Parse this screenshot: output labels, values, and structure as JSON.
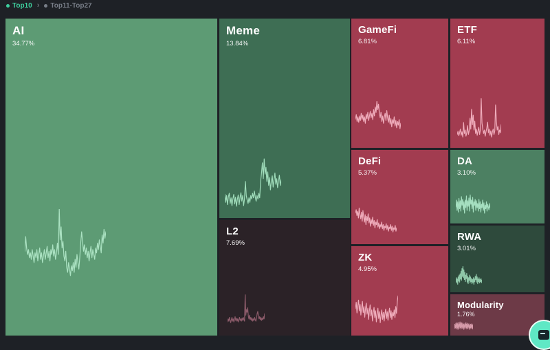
{
  "header": {
    "tabs": [
      {
        "label": "Top10",
        "active": true
      },
      {
        "label": "Top11-Top27",
        "active": false
      }
    ],
    "separator": "›",
    "active_color": "#3ecf9e",
    "inactive_color": "#787e88"
  },
  "chart_data": {
    "type": "treemap",
    "title": "Sector dominance treemap with price sparklines",
    "legend_position": "none",
    "sectors": [
      {
        "name": "AI",
        "share": "34.77%",
        "value": 34.77,
        "trend": "up",
        "color": "#5d9b74",
        "spark_color": "#abe2c2",
        "spark": [
          48,
          66,
          52,
          44,
          50,
          40,
          46,
          38,
          50,
          42,
          34,
          46,
          40,
          50,
          36,
          44,
          52,
          38,
          46,
          34,
          42,
          50,
          38,
          46,
          54,
          40,
          48,
          36,
          50,
          44,
          56,
          42,
          50,
          38,
          46,
          58,
          44,
          100,
          62,
          78,
          52,
          60,
          42,
          36,
          48,
          28,
          22,
          34,
          26,
          18,
          30,
          24,
          34,
          22,
          38,
          28,
          44,
          34,
          26,
          40,
          58,
          72,
          60,
          48,
          56,
          44,
          52,
          40,
          48,
          36,
          46,
          54,
          40,
          50,
          44,
          38,
          52,
          46,
          58,
          50,
          62,
          54,
          46,
          68,
          58,
          75,
          64,
          72
        ]
      },
      {
        "name": "Meme",
        "share": "13.84%",
        "value": 13.84,
        "trend": "up",
        "color": "#3e6e54",
        "spark_color": "#9fdcba",
        "spark": [
          32,
          18,
          30,
          14,
          28,
          34,
          16,
          26,
          12,
          24,
          32,
          15,
          27,
          11,
          23,
          31,
          14,
          26,
          35,
          20,
          30,
          12,
          24,
          55,
          30,
          22,
          16,
          26,
          18,
          30,
          24,
          34,
          26,
          38,
          28,
          20,
          30,
          24,
          34,
          26,
          55,
          70,
          88,
          60,
          95,
          68,
          80,
          55,
          72,
          48,
          62,
          40,
          55,
          65,
          45,
          58,
          70,
          50,
          60,
          44,
          56,
          66,
          48,
          58
        ]
      },
      {
        "name": "L2",
        "share": "7.69%",
        "value": 7.69,
        "trend": "down",
        "color": "#2b2227",
        "spark_color": "#8d5c6b",
        "spark": [
          22,
          30,
          24,
          34,
          26,
          20,
          28,
          34,
          24,
          30,
          22,
          28,
          36,
          26,
          32,
          24,
          30,
          22,
          28,
          34,
          26,
          30,
          24,
          32,
          26,
          34,
          28,
          24,
          95,
          40,
          55,
          48,
          60,
          38,
          30,
          40,
          28,
          34,
          26,
          32,
          24,
          30,
          26,
          34,
          28,
          24,
          32,
          44,
          50,
          38,
          30,
          36,
          28,
          34,
          26,
          32,
          28,
          36,
          30,
          44
        ]
      },
      {
        "name": "GameFi",
        "share": "6.81%",
        "value": 6.81,
        "trend": "down",
        "color": "#a23c50",
        "spark_color": "#efacbb",
        "spark": [
          45,
          55,
          40,
          50,
          38,
          52,
          42,
          58,
          44,
          54,
          40,
          50,
          36,
          56,
          46,
          60,
          42,
          52,
          62,
          48,
          58,
          44,
          66,
          52,
          72,
          60,
          84,
          66,
          78,
          58,
          48,
          60,
          40,
          52,
          36,
          50,
          58,
          42,
          64,
          48,
          38,
          54,
          34,
          46,
          28,
          44,
          36,
          50,
          30,
          42,
          26,
          40,
          32,
          44,
          24,
          36
        ]
      },
      {
        "name": "ETF",
        "share": "6.11%",
        "value": 6.11,
        "trend": "down",
        "color": "#a23c50",
        "spark_color": "#efacbb",
        "spark": [
          18,
          25,
          15,
          22,
          30,
          16,
          24,
          12,
          45,
          20,
          28,
          14,
          22,
          38,
          18,
          26,
          55,
          30,
          75,
          40,
          62,
          28,
          48,
          20,
          30,
          16,
          26,
          34,
          18,
          28,
          100,
          44,
          30,
          20,
          28,
          14,
          24,
          32,
          46,
          22,
          30,
          16,
          26,
          12,
          24,
          30,
          18,
          26,
          85,
          48,
          28,
          36,
          18,
          28,
          22,
          40
        ]
      },
      {
        "name": "DeFi",
        "share": "5.37%",
        "value": 5.37,
        "trend": "down",
        "color": "#a23c50",
        "spark_color": "#efacbb",
        "spark": [
          62,
          70,
          56,
          66,
          50,
          74,
          58,
          48,
          64,
          42,
          68,
          52,
          40,
          58,
          34,
          54,
          44,
          60,
          38,
          50,
          30,
          46,
          36,
          52,
          32,
          44,
          26,
          40,
          34,
          46,
          28,
          38,
          24,
          34,
          28,
          40,
          24,
          34,
          20,
          30,
          26,
          36,
          22,
          32,
          18,
          28,
          24,
          34,
          20,
          30,
          16,
          26,
          22,
          32,
          18,
          26
        ]
      },
      {
        "name": "ZK",
        "share": "4.95%",
        "value": 4.95,
        "trend": "down",
        "color": "#a23c50",
        "spark_color": "#efacbb",
        "spark": [
          55,
          70,
          45,
          62,
          75,
          50,
          65,
          40,
          58,
          72,
          46,
          60,
          35,
          55,
          68,
          42,
          56,
          30,
          50,
          64,
          38,
          52,
          26,
          46,
          58,
          34,
          50,
          24,
          44,
          56,
          32,
          48,
          22,
          40,
          52,
          30,
          46,
          26,
          42,
          54,
          32,
          48,
          28,
          44,
          56,
          34,
          50,
          30,
          46,
          38,
          52,
          34,
          60,
          44,
          72,
          85
        ]
      },
      {
        "name": "DA",
        "share": "3.10%",
        "value": 3.1,
        "trend": "up",
        "color": "#4c8062",
        "spark_color": "#a5dfc0",
        "spark": [
          40,
          60,
          30,
          55,
          25,
          65,
          35,
          58,
          28,
          70,
          45,
          62,
          32,
          55,
          22,
          60,
          38,
          72,
          30,
          58,
          42,
          66,
          28,
          75,
          48,
          60,
          35,
          68,
          25,
          55,
          45,
          62,
          30,
          58,
          38,
          50,
          28,
          62,
          35,
          55,
          25,
          48,
          38,
          60,
          30,
          52,
          22,
          45,
          35,
          55,
          28,
          48,
          40,
          32,
          50,
          38
        ]
      },
      {
        "name": "RWA",
        "share": "3.01%",
        "value": 3.01,
        "trend": "up",
        "color": "#2e4a3c",
        "spark_color": "#8fc7a8",
        "spark": [
          30,
          45,
          25,
          40,
          20,
          48,
          32,
          55,
          28,
          60,
          40,
          70,
          35,
          80,
          50,
          88,
          45,
          75,
          38,
          65,
          30,
          55,
          42,
          62,
          28,
          50,
          22,
          45,
          35,
          55,
          25,
          48,
          30,
          42,
          22,
          38,
          28,
          45,
          20,
          40,
          30,
          50,
          38,
          58,
          28,
          48,
          22,
          40,
          30,
          45,
          25,
          38,
          30,
          42,
          26,
          36
        ]
      },
      {
        "name": "Modularity",
        "share": "1.76%",
        "value": 1.76,
        "trend": "down",
        "color": "#6d3a47",
        "spark_color": "#d59aa9",
        "spark": [
          35,
          50,
          28,
          45,
          32,
          55,
          25,
          48,
          38,
          58,
          30,
          52,
          22,
          45,
          35,
          60,
          28,
          50,
          40,
          62,
          32,
          55,
          25,
          48,
          35,
          58,
          28,
          45,
          38,
          55,
          30,
          50,
          22,
          42,
          35,
          52,
          28,
          48,
          40,
          58,
          32,
          50,
          25,
          45,
          35,
          55,
          28,
          48,
          38,
          52,
          30,
          45,
          22,
          40,
          32,
          50,
          28,
          45,
          35,
          52,
          30,
          48,
          25,
          42
        ]
      }
    ]
  },
  "fab": {
    "color": "#5fe8c5"
  }
}
